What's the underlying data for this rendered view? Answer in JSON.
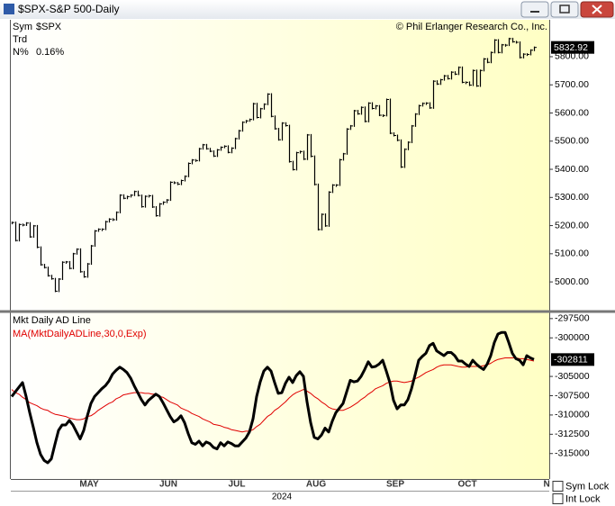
{
  "window_title": "$SPX-S&P 500-Daily",
  "copyright": "© Phil Erlanger Research Co., Inc.",
  "checkboxes": [
    "Sym Lock",
    "Int Lock"
  ],
  "x_axis": {
    "year": "2024",
    "categories": [
      null,
      null,
      null,
      null,
      null,
      null,
      null,
      null,
      null,
      null,
      null,
      null,
      null,
      null,
      null,
      null,
      null,
      null,
      null,
      null,
      "MAY",
      null,
      null,
      null,
      null,
      null,
      null,
      null,
      null,
      null,
      null,
      null,
      null,
      null,
      null,
      null,
      null,
      null,
      null,
      null,
      null,
      null,
      "JUN",
      null,
      null,
      null,
      null,
      null,
      null,
      null,
      null,
      null,
      null,
      null,
      null,
      null,
      null,
      null,
      null,
      null,
      null,
      "JUL",
      null,
      null,
      null,
      null,
      null,
      null,
      null,
      null,
      null,
      null,
      null,
      null,
      null,
      null,
      null,
      null,
      null,
      null,
      null,
      null,
      null,
      "AUG",
      null,
      null,
      null,
      null,
      null,
      null,
      null,
      null,
      null,
      null,
      null,
      null,
      null,
      null,
      null,
      null,
      null,
      null,
      null,
      null,
      null,
      "SEP",
      null,
      null,
      null,
      null,
      null,
      null,
      null,
      null,
      null,
      null,
      null,
      null,
      null,
      null,
      null,
      null,
      null,
      null,
      null,
      "OCT",
      null,
      null,
      null,
      null,
      null,
      null,
      null,
      null,
      null,
      null,
      null,
      null,
      null,
      null,
      null,
      null,
      null,
      null,
      null,
      null,
      null,
      null,
      "NO"
    ]
  },
  "chart_data": [
    {
      "type": "ohlc",
      "info": {
        "sym_label": "Sym",
        "sym": "$SPX",
        "trd_label": "Trd",
        "n_label": "N%",
        "n_value": "0.16%"
      },
      "color": "#000000",
      "values": [
        5211,
        5147,
        5204,
        5202,
        5209,
        5160,
        5199,
        5123,
        5061,
        5051,
        5022,
        5011,
        4967,
        5010,
        5070,
        5071,
        5048,
        5100,
        5116,
        5036,
        5018,
        5064,
        5128,
        5181,
        5187,
        5187,
        5214,
        5223,
        5221,
        5247,
        5308,
        5297,
        5303,
        5308,
        5321,
        5307,
        5267,
        5304,
        5306,
        5266,
        5235,
        5277,
        5283,
        5291,
        5354,
        5352,
        5347,
        5360,
        5375,
        5421,
        5433,
        5431,
        5473,
        5487,
        5473,
        5464,
        5447,
        5469,
        5478,
        5482,
        5460,
        5475,
        5509,
        5537,
        5567,
        5572,
        5577,
        5633,
        5584,
        5615,
        5631,
        5667,
        5588,
        5544,
        5505,
        5564,
        5555,
        5427,
        5399,
        5459,
        5463,
        5436,
        5522,
        5446,
        5346,
        5186,
        5240,
        5199,
        5319,
        5344,
        5344,
        5434,
        5455,
        5543,
        5554,
        5608,
        5597,
        5620,
        5570,
        5635,
        5616,
        5625,
        5592,
        5591,
        5648,
        5528,
        5520,
        5503,
        5408,
        5471,
        5496,
        5554,
        5596,
        5626,
        5634,
        5635,
        5618,
        5713,
        5703,
        5718,
        5732,
        5722,
        5745,
        5738,
        5762,
        5709,
        5709,
        5699,
        5751,
        5696,
        5751,
        5792,
        5780,
        5815,
        5859,
        5815,
        5842,
        5841,
        5864,
        5853,
        5851,
        5797,
        5809,
        5808,
        5823,
        5832.92,
        null,
        null,
        null
      ],
      "ylim": [
        4898,
        5931
      ],
      "yticks": [
        {
          "value": 5000,
          "label": "5000.00"
        },
        {
          "value": 5100,
          "label": "5100.00"
        },
        {
          "value": 5200,
          "label": "5200.00"
        },
        {
          "value": 5300,
          "label": "5300.00"
        },
        {
          "value": 5400,
          "label": "5400.00"
        },
        {
          "value": 5500,
          "label": "5500.00"
        },
        {
          "value": 5600,
          "label": "5600.00"
        },
        {
          "value": 5700,
          "label": "5700.00"
        },
        {
          "value": 5800,
          "label": "5800.00"
        }
      ],
      "grid": false
    },
    {
      "type": "line",
      "series": [
        {
          "name": "Mkt Daily AD Line",
          "color": "#000000",
          "values": [
            -307600,
            -307000,
            -306400,
            -305800,
            -307600,
            -309700,
            -311600,
            -313600,
            -315100,
            -315900,
            -316200,
            -315700,
            -313800,
            -312000,
            -311300,
            -311300,
            -310700,
            -311300,
            -312200,
            -313100,
            -312000,
            -310100,
            -308500,
            -307600,
            -307100,
            -306600,
            -306200,
            -305600,
            -304700,
            -304200,
            -303800,
            -304100,
            -304500,
            -305200,
            -306200,
            -307100,
            -308000,
            -308700,
            -308100,
            -307700,
            -307300,
            -307600,
            -308400,
            -309300,
            -310200,
            -310900,
            -310600,
            -310100,
            -311000,
            -312400,
            -313600,
            -313800,
            -313400,
            -314000,
            -313500,
            -313700,
            -314200,
            -314400,
            -313600,
            -314000,
            -313500,
            -313700,
            -314000,
            -314000,
            -313500,
            -313000,
            -312200,
            -310500,
            -307600,
            -305700,
            -304300,
            -303800,
            -304300,
            -305800,
            -307200,
            -307100,
            -305900,
            -305100,
            -305800,
            -304900,
            -304400,
            -305000,
            -308300,
            -311000,
            -312900,
            -313100,
            -312600,
            -311700,
            -312200,
            -310800,
            -309700,
            -309100,
            -308500,
            -307000,
            -305500,
            -305700,
            -305600,
            -305000,
            -304100,
            -303100,
            -303800,
            -303700,
            -303400,
            -302900,
            -304300,
            -305800,
            -308100,
            -309200,
            -308700,
            -308700,
            -308000,
            -306600,
            -304800,
            -302900,
            -302400,
            -302000,
            -301000,
            -300700,
            -301700,
            -302000,
            -302300,
            -301900,
            -301900,
            -302300,
            -303000,
            -303000,
            -303400,
            -303700,
            -302900,
            -303400,
            -303800,
            -304100,
            -303400,
            -302300,
            -300600,
            -299500,
            -299300,
            -299300,
            -300600,
            -302000,
            -302700,
            -302900,
            -303500,
            -302300,
            -302600,
            -302811,
            null,
            null,
            null
          ]
        },
        {
          "name": "MA(MktDailyADLine,30,0,Exp)",
          "color": "#e00000",
          "values": [
            -306700,
            -307100,
            -307300,
            -307700,
            -308000,
            -308400,
            -308600,
            -308800,
            -309100,
            -309300,
            -309400,
            -309700,
            -309900,
            -310000,
            -310100,
            -310200,
            -310400,
            -310500,
            -310600,
            -310600,
            -310500,
            -310200,
            -310100,
            -309800,
            -309400,
            -309100,
            -308800,
            -308500,
            -308300,
            -307900,
            -307700,
            -307400,
            -307300,
            -307200,
            -307100,
            -307100,
            -307100,
            -307200,
            -307200,
            -307300,
            -307300,
            -307600,
            -307700,
            -308000,
            -308300,
            -308500,
            -308700,
            -309100,
            -309300,
            -309500,
            -309800,
            -310000,
            -310200,
            -310500,
            -310700,
            -310900,
            -311200,
            -311300,
            -311400,
            -311600,
            -311700,
            -311900,
            -312000,
            -312100,
            -312200,
            -312100,
            -312100,
            -311900,
            -311500,
            -311200,
            -310700,
            -310200,
            -309900,
            -309400,
            -309100,
            -308700,
            -308300,
            -307800,
            -307400,
            -307100,
            -306900,
            -306700,
            -306900,
            -307200,
            -307600,
            -307900,
            -308300,
            -308600,
            -309000,
            -309200,
            -309300,
            -309400,
            -309400,
            -309200,
            -309000,
            -308700,
            -308400,
            -308000,
            -307700,
            -307300,
            -307000,
            -306600,
            -306400,
            -306200,
            -305900,
            -305700,
            -305600,
            -305600,
            -305700,
            -305800,
            -305700,
            -305600,
            -305300,
            -305100,
            -304800,
            -304500,
            -304300,
            -304100,
            -303800,
            -303600,
            -303500,
            -303500,
            -303500,
            -303600,
            -303700,
            -303800,
            -303800,
            -303700,
            -303700,
            -303700,
            -303700,
            -303600,
            -303500,
            -303300,
            -303000,
            -302800,
            -302700,
            -302600,
            -302600,
            -302600,
            -302600,
            -302700,
            -302700,
            -302800,
            -302900,
            -303000,
            null,
            null,
            null
          ]
        }
      ],
      "ylim": [
        -318300,
        -296700
      ],
      "yticks": [
        -297500,
        -300000,
        -305000,
        -307500,
        -310000,
        -312500,
        -315000
      ],
      "grid": false
    }
  ]
}
